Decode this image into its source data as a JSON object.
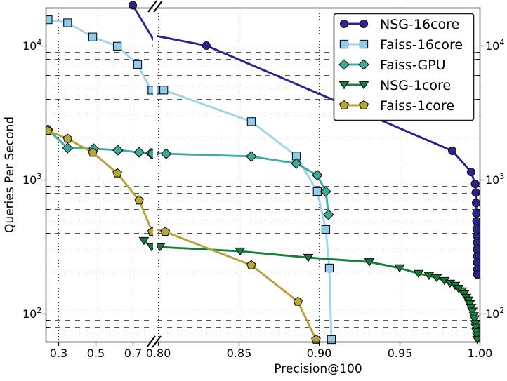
{
  "chart_data": {
    "type": "line",
    "title": "",
    "xlabel": "Precision@100",
    "ylabel": "Queries Per Second",
    "x_axis": {
      "broken": true,
      "segments": [
        {
          "min": 0.232,
          "max": 0.809,
          "ticks": [
            0.3,
            0.5,
            0.7
          ],
          "tick_labels": [
            "0.3",
            "0.5",
            "0.7"
          ]
        },
        {
          "min": 0.7995,
          "max": 1.0,
          "ticks": [
            0.8,
            0.85,
            0.9,
            0.95,
            1.0
          ],
          "tick_labels": [
            "0.80",
            "0.85",
            "0.90",
            "0.95",
            "1.00"
          ]
        }
      ]
    },
    "y_axis": {
      "scale": "log",
      "min": 59,
      "max": 19200,
      "major_ticks": [
        100,
        1000,
        10000
      ],
      "tick_labels": [
        {
          "base": "10",
          "exp": "2"
        },
        {
          "base": "10",
          "exp": "3"
        },
        {
          "base": "10",
          "exp": "4"
        }
      ],
      "label_both_sides": true
    },
    "grid": {
      "major_style": "dotted",
      "minor_style": "dashed"
    },
    "legend": {
      "position": "upper right",
      "entries": [
        "NSG-16core",
        "Faiss-16core",
        "Faiss-GPU",
        "NSG-1core",
        "Faiss-1core"
      ]
    },
    "series": [
      {
        "name": "NSG-16core",
        "color": "#2c2390",
        "marker": "circle",
        "marker_fill": "#2c2390",
        "points": [
          [
            0.7,
            20000
          ],
          [
            0.83,
            10000
          ],
          [
            0.983,
            1640
          ],
          [
            0.9947,
            1140
          ],
          [
            0.9972,
            930
          ],
          [
            0.9976,
            800
          ],
          [
            0.9978,
            670
          ],
          [
            0.998,
            560
          ],
          [
            0.9981,
            490
          ],
          [
            0.9982,
            430
          ],
          [
            0.9983,
            382
          ],
          [
            0.9984,
            340
          ],
          [
            0.9984,
            302
          ],
          [
            0.9985,
            268
          ],
          [
            0.9985,
            240
          ],
          [
            0.9986,
            215
          ],
          [
            0.9986,
            196
          ]
        ]
      },
      {
        "name": "Faiss-16core",
        "color": "#9fd4f0",
        "marker": "square",
        "marker_fill": "#8fcdee",
        "points": [
          [
            0.245,
            15600
          ],
          [
            0.35,
            14800
          ],
          [
            0.485,
            11600
          ],
          [
            0.617,
            9900
          ],
          [
            0.726,
            7230
          ],
          [
            0.798,
            4660
          ],
          [
            0.8035,
            4660
          ],
          [
            0.858,
            2710
          ],
          [
            0.886,
            1500
          ],
          [
            0.899,
            815
          ],
          [
            0.9043,
            425
          ],
          [
            0.9065,
            219
          ],
          [
            0.9078,
            64
          ]
        ]
      },
      {
        "name": "Faiss-GPU",
        "color": "#3fae9f",
        "marker": "diamond",
        "marker_fill": "#3aaa9b",
        "points": [
          [
            0.245,
            2355
          ],
          [
            0.35,
            1720
          ],
          [
            0.49,
            1700
          ],
          [
            0.62,
            1660
          ],
          [
            0.734,
            1600
          ],
          [
            0.7975,
            1570
          ],
          [
            0.805,
            1560
          ],
          [
            0.858,
            1490
          ],
          [
            0.886,
            1320
          ],
          [
            0.899,
            1080
          ],
          [
            0.9043,
            815
          ],
          [
            0.906,
            548
          ]
        ]
      },
      {
        "name": "NSG-1core",
        "color": "#15803c",
        "marker": "triangle-down",
        "marker_fill": "#177f3a",
        "points": [
          [
            0.7598,
            350
          ],
          [
            0.8012,
            314
          ],
          [
            0.851,
            292
          ],
          [
            0.8934,
            262
          ],
          [
            0.9314,
            243
          ],
          [
            0.9502,
            219
          ],
          [
            0.962,
            199
          ],
          [
            0.9685,
            192
          ],
          [
            0.9733,
            185
          ],
          [
            0.9781,
            176
          ],
          [
            0.9816,
            168
          ],
          [
            0.9847,
            162
          ],
          [
            0.9868,
            154
          ],
          [
            0.989,
            147
          ],
          [
            0.9903,
            140
          ],
          [
            0.9916,
            132
          ],
          [
            0.9929,
            126
          ],
          [
            0.9938,
            118
          ],
          [
            0.9947,
            111
          ],
          [
            0.9955,
            104
          ],
          [
            0.9964,
            97
          ],
          [
            0.9968,
            91
          ],
          [
            0.9973,
            84
          ],
          [
            0.9977,
            79
          ],
          [
            0.9981,
            73
          ],
          [
            0.9983,
            68
          ],
          [
            0.9986,
            64
          ]
        ]
      },
      {
        "name": "Faiss-1core",
        "color": "#b3a23a",
        "marker": "pentagon",
        "marker_fill": "#b8a637",
        "points": [
          [
            0.243,
            2320
          ],
          [
            0.35,
            2020
          ],
          [
            0.485,
            1590
          ],
          [
            0.617,
            1115
          ],
          [
            0.734,
            700
          ],
          [
            0.8044,
            408
          ],
          [
            0.858,
            230
          ],
          [
            0.887,
            123
          ],
          [
            0.8982,
            64
          ]
        ]
      }
    ]
  }
}
